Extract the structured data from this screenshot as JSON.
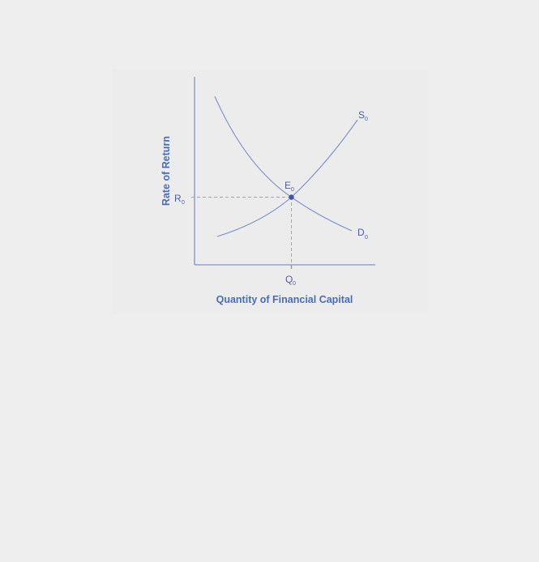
{
  "chart_data": {
    "type": "line",
    "title": "",
    "xlabel": "Quantity of Financial Capital",
    "ylabel": "Rate of Return",
    "grid": false,
    "series": [
      {
        "name": "S",
        "subscript": "0",
        "kind": "supply"
      },
      {
        "name": "D",
        "subscript": "0",
        "kind": "demand"
      }
    ],
    "equilibrium": {
      "point_label": "E",
      "point_sub": "0",
      "x_label": "Q",
      "x_sub": "0",
      "y_label": "R",
      "y_sub": "0"
    },
    "colors": {
      "curves": "#7d8fc6",
      "axes": "#8294c4",
      "guides": "#c98fb4",
      "labels": "#4d5f9d",
      "axis_titles": "#4a6db5",
      "point": "#3d57a8"
    }
  }
}
